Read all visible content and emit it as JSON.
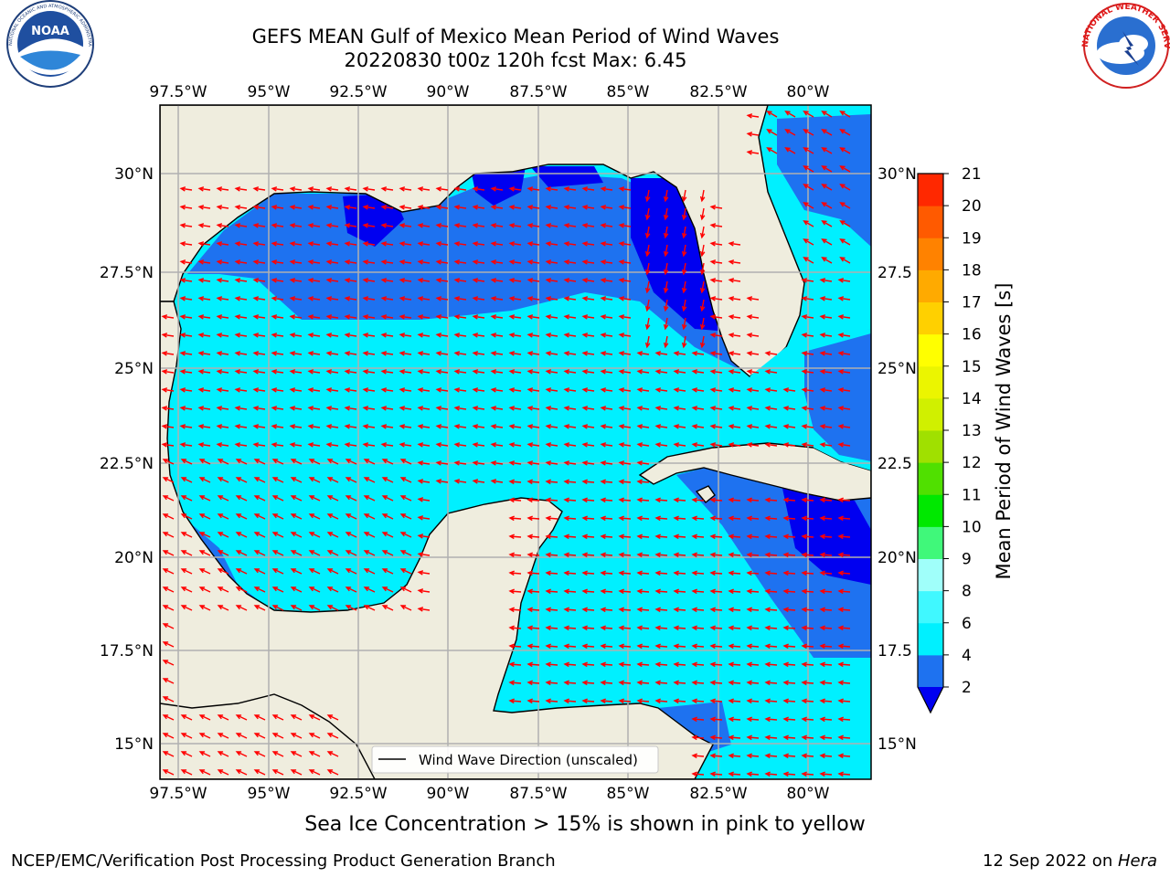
{
  "title": {
    "line1": "GEFS MEAN Gulf of Mexico Mean Period of Wind Waves",
    "line2": "20220830 t00z 120h fcst   Max: 6.45"
  },
  "logos": {
    "left": "noaa-logo",
    "left_caption": "NOAA",
    "left_ring_text": "NATIONAL OCEANIC AND ATMOSPHERIC ADMINISTRATION · U.S. DEPARTMENT OF COMMERCE",
    "right": "nws-logo",
    "right_ring_text": "NATIONAL WEATHER SERVICE"
  },
  "map": {
    "lon_labels": [
      "97.5°W",
      "95°W",
      "92.5°W",
      "90°W",
      "87.5°W",
      "85°W",
      "82.5°W",
      "80°W"
    ],
    "lat_labels_left": [
      "30°N",
      "27.5°N",
      "25°N",
      "22.5°N",
      "20°N",
      "17.5°N",
      "15°N"
    ],
    "lat_labels_right": [
      "30°N",
      "27.5",
      "25°N",
      "22.5",
      "20°N",
      "17.5",
      "15°N"
    ],
    "legend_label": "Wind Wave Direction (unscaled)",
    "colors": {
      "land": "#efedde",
      "bin_2_4": "#1e72f0",
      "bin_4_6": "#00f0ff",
      "below_2": "#0000f0",
      "arrow": "#ff0000",
      "grid": "#b0b0b0"
    }
  },
  "colorbar": {
    "label": "Mean Period of Wind Waves [s]",
    "ticks": [
      "2",
      "4",
      "6",
      "8",
      "9",
      "10",
      "11",
      "12",
      "13",
      "14",
      "15",
      "16",
      "17",
      "18",
      "19",
      "20",
      "21"
    ],
    "colors": [
      "#1e72f0",
      "#00f0ff",
      "#40f8ff",
      "#a0fffa",
      "#40f87a",
      "#00e800",
      "#50e000",
      "#a0e000",
      "#d0f000",
      "#ebf500",
      "#ffff00",
      "#ffd000",
      "#ffaa00",
      "#ff8200",
      "#ff5a00",
      "#ff2800",
      "#ff0000"
    ],
    "extend_color": "#0000f0"
  },
  "notes": {
    "sea_ice": "Sea Ice Concentration > 15% is shown in pink to yellow",
    "credit": "NCEP/EMC/Verification Post Processing Product Generation Branch",
    "date": "12 Sep 2022 on ",
    "host": "Hera"
  }
}
